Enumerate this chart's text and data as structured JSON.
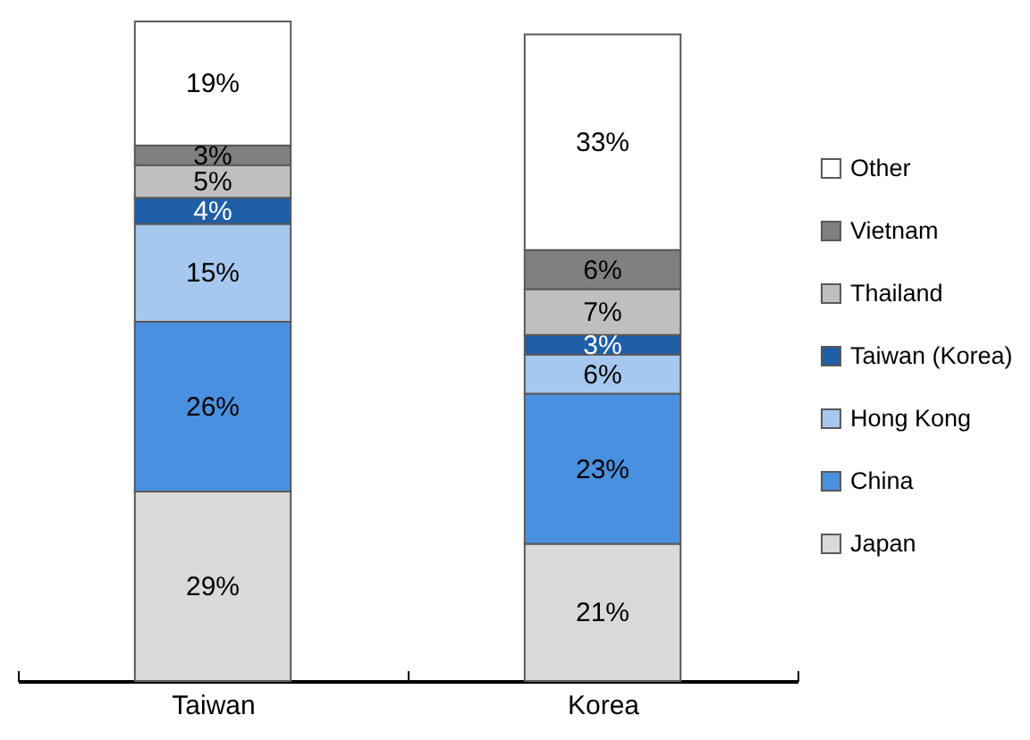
{
  "chart_data": {
    "type": "bar",
    "stacked": true,
    "legend": "right",
    "categories": [
      "Taiwan",
      "Korea"
    ],
    "series": [
      {
        "name": "Japan",
        "color": "#d9d9d9",
        "values": [
          29,
          21
        ],
        "value_labels": [
          "29%",
          "21%"
        ]
      },
      {
        "name": "China",
        "color": "#4a90e0",
        "values": [
          26,
          23
        ],
        "value_labels": [
          "26%",
          "23%"
        ]
      },
      {
        "name": "Hong Kong",
        "color": "#a6c8ee",
        "values": [
          15,
          6
        ],
        "value_labels": [
          "15%",
          "6%"
        ]
      },
      {
        "name": "Taiwan (Korea)",
        "color": "#1f5fa8",
        "values": [
          4,
          3
        ],
        "value_labels": [
          "4%",
          "3%"
        ]
      },
      {
        "name": "Thailand",
        "color": "#bfbfbf",
        "values": [
          5,
          7
        ],
        "value_labels": [
          "5%",
          "7%"
        ]
      },
      {
        "name": "Vietnam",
        "color": "#808080",
        "values": [
          3,
          6
        ],
        "value_labels": [
          "3%",
          "6%"
        ]
      },
      {
        "name": "Other",
        "color": "#ffffff",
        "values": [
          19,
          33
        ],
        "value_labels": [
          "19%",
          "33%"
        ]
      }
    ]
  }
}
